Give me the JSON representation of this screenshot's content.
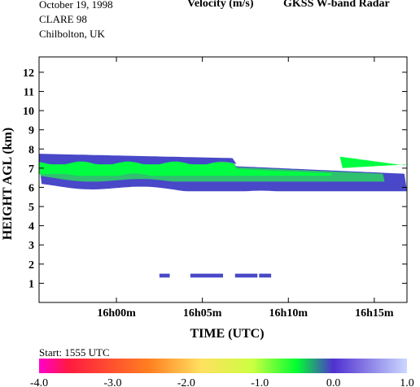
{
  "header": {
    "date": "October  19, 1998",
    "campaign": "CLARE 98",
    "location": "Chilbolton, UK",
    "quantity": "Velocity (m/s)",
    "instrument": "GKSS  W-band Radar"
  },
  "start_label": "Start: 1555 UTC",
  "chart_data": {
    "type": "heatmap",
    "title": "Velocity (m/s)",
    "xlabel": "TIME (UTC)",
    "ylabel": "HEIGHT AGL (km)",
    "xlim": [
      "15h55m",
      "16h17m"
    ],
    "ylim": [
      0,
      12.8
    ],
    "x_ticks": [
      "16h00m",
      "16h05m",
      "16h10m",
      "16h15m"
    ],
    "y_ticks": [
      "1",
      "2",
      "3",
      "4",
      "5",
      "6",
      "7",
      "8",
      "9",
      "10",
      "11",
      "12"
    ],
    "colorbar": {
      "range": [
        -4.0,
        1.0
      ],
      "tick_labels": [
        "-4.0",
        "-3.0",
        "-2.0",
        "-1.0",
        "0.0",
        "1.0"
      ],
      "colors": [
        "#ff00cc",
        "#ff1a40",
        "#ff8020",
        "#ffe060",
        "#ccff40",
        "#00ff30",
        "#5030d0",
        "#ccd8ff"
      ]
    },
    "features": [
      {
        "name": "cloud layer base",
        "time_min": [
          -4.5,
          16.9
        ],
        "height_km": [
          5.8,
          7.2
        ],
        "velocity_ms": 0.1,
        "color": "#4848c8"
      },
      {
        "name": "cloud layer body",
        "time_min": [
          -4.5,
          15.6
        ],
        "height_km": [
          6.3,
          7.6
        ],
        "velocity_ms": -0.6,
        "color": "#30c070"
      },
      {
        "name": "cloud layer falling core",
        "time_min": [
          -4.5,
          12.5
        ],
        "height_km": [
          6.6,
          7.5
        ],
        "velocity_ms": -0.9,
        "color": "#00ff40"
      },
      {
        "name": "cloud layer top",
        "time_min": [
          -4.5,
          7.0
        ],
        "height_km": [
          7.2,
          7.9
        ],
        "velocity_ms": 0.2,
        "color": "#4848c8"
      },
      {
        "name": "upper detached patch",
        "time_min": [
          13.0,
          16.9
        ],
        "height_km": [
          7.0,
          7.7
        ],
        "velocity_ms": -0.9,
        "color": "#00ff40"
      },
      {
        "name": "low echoes",
        "time_min": [
          2.5,
          9.0
        ],
        "height_km": [
          1.3,
          1.5
        ],
        "velocity_ms": 0.1,
        "color": "#4848c8"
      }
    ]
  }
}
